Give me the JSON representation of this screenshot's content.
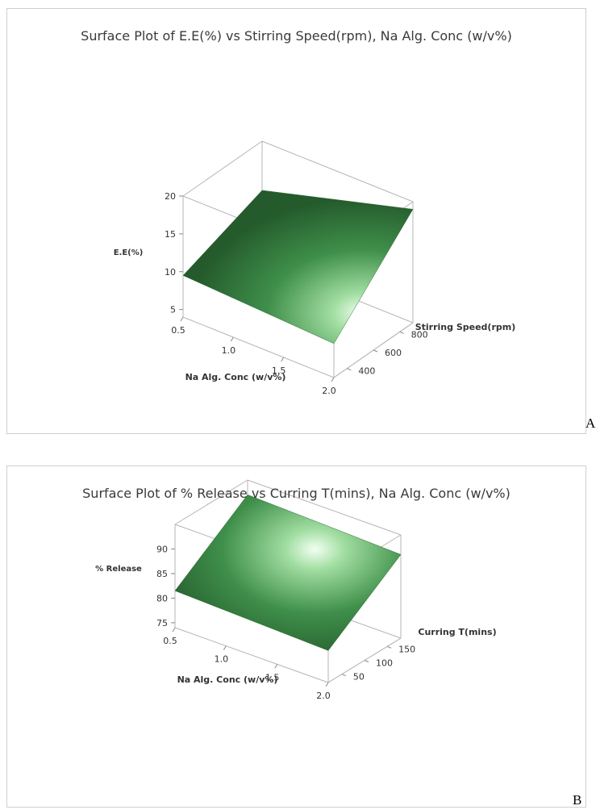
{
  "chart_data": [
    {
      "type": "surface",
      "title": "Surface Plot of E.E(%) vs Stirring Speed(rpm), Na Alg. Conc (w/v%)",
      "xlabel": "Na Alg. Conc (w/v%)",
      "ylabel": "Stirring Speed(rpm)",
      "zlabel": "E.E(%)",
      "x_ticks": [
        "0.5",
        "1.0",
        "1.5",
        "2.0"
      ],
      "y_ticks": [
        "400",
        "600",
        "800"
      ],
      "z_ticks": [
        "5",
        "10",
        "15",
        "20"
      ],
      "xlim": [
        0.5,
        2.0
      ],
      "ylim": [
        300,
        900
      ],
      "zlim": [
        4,
        20
      ],
      "surface_corners": [
        {
          "x": 0.5,
          "y": 300,
          "z": 9.5
        },
        {
          "x": 2.0,
          "y": 300,
          "z": 8.5
        },
        {
          "x": 2.0,
          "y": 900,
          "z": 19.0
        },
        {
          "x": 0.5,
          "y": 900,
          "z": 13.5
        }
      ],
      "surface_color": "#3f8f4a",
      "panel_label": "A"
    },
    {
      "type": "surface",
      "title": "Surface Plot of % Release vs Curring T(mins), Na Alg. Conc (w/v%)",
      "xlabel": "Na Alg. Conc (w/v%)",
      "ylabel": "Curring T(mins)",
      "zlabel": "% Release",
      "x_ticks": [
        "0.5",
        "1.0",
        "1.5",
        "2.0"
      ],
      "y_ticks": [
        "50",
        "100",
        "150"
      ],
      "z_ticks": [
        "75",
        "80",
        "85",
        "90"
      ],
      "xlim": [
        0.5,
        2.0
      ],
      "ylim": [
        20,
        180
      ],
      "zlim": [
        74,
        95
      ],
      "surface_corners": [
        {
          "x": 0.5,
          "y": 20,
          "z": 81.5
        },
        {
          "x": 2.0,
          "y": 20,
          "z": 80.5
        },
        {
          "x": 2.0,
          "y": 180,
          "z": 91.0
        },
        {
          "x": 0.5,
          "y": 180,
          "z": 92.0
        }
      ],
      "surface_color": "#3f8f4a",
      "panel_label": "B"
    }
  ]
}
